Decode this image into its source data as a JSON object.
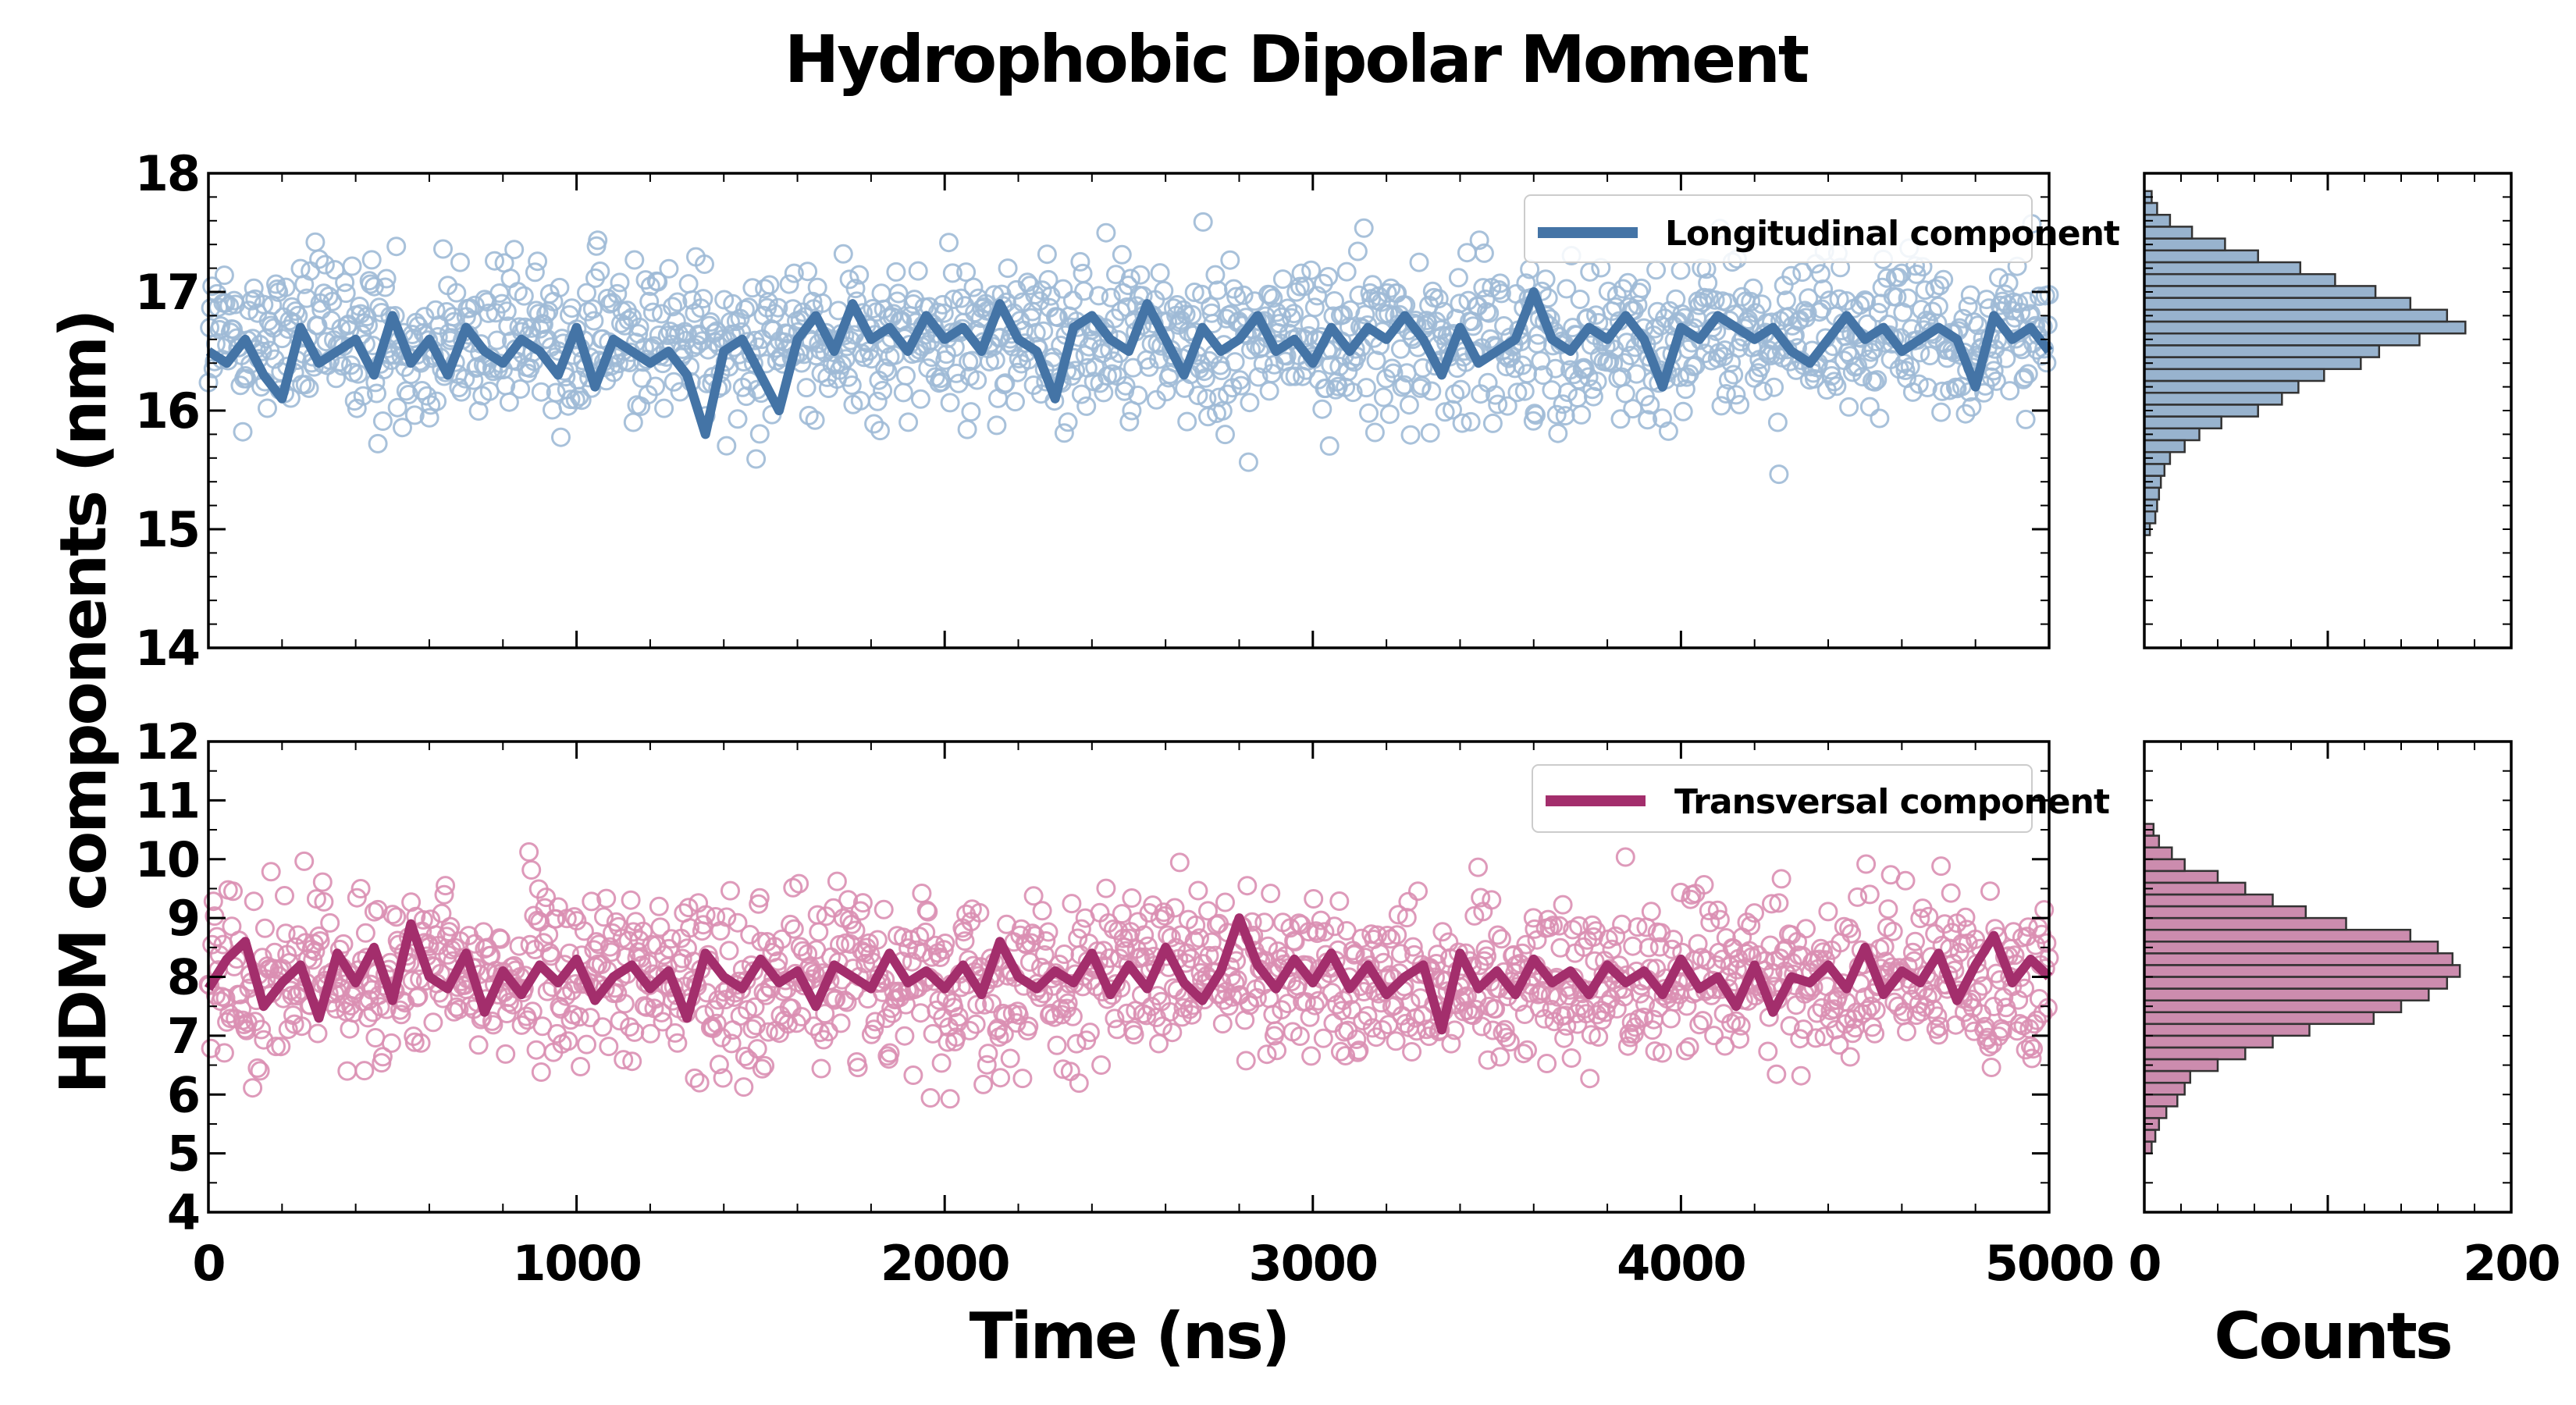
{
  "chart_data": {
    "title": "Hydrophobic Dipolar Moment",
    "ylabel": "HDM components (nm)",
    "xlabel_time": "Time (ns)",
    "xlabel_counts": "Counts",
    "time_axis": {
      "range": [
        0,
        5000
      ],
      "ticks": [
        "0",
        "1000",
        "2000",
        "3000",
        "4000",
        "5000"
      ]
    },
    "counts_axis": {
      "range": [
        0,
        200
      ],
      "ticks": [
        "0",
        "200"
      ]
    },
    "panels": [
      {
        "type": "scatter",
        "series_name": "Longitudinal component",
        "color": "#4474a6",
        "scatter_color": "#9fbad6",
        "ylim": [
          14,
          18
        ],
        "yticks": [
          "14",
          "15",
          "16",
          "17",
          "18"
        ],
        "line_x": [
          0,
          50,
          100,
          150,
          200,
          250,
          300,
          350,
          400,
          450,
          500,
          550,
          600,
          650,
          700,
          750,
          800,
          850,
          900,
          950,
          1000,
          1050,
          1100,
          1150,
          1200,
          1250,
          1300,
          1350,
          1400,
          1450,
          1500,
          1550,
          1600,
          1650,
          1700,
          1750,
          1800,
          1850,
          1900,
          1950,
          2000,
          2050,
          2100,
          2150,
          2200,
          2250,
          2300,
          2350,
          2400,
          2450,
          2500,
          2550,
          2600,
          2650,
          2700,
          2750,
          2800,
          2850,
          2900,
          2950,
          3000,
          3050,
          3100,
          3150,
          3200,
          3250,
          3300,
          3350,
          3400,
          3450,
          3500,
          3550,
          3600,
          3650,
          3700,
          3750,
          3800,
          3850,
          3900,
          3950,
          4000,
          4050,
          4100,
          4150,
          4200,
          4250,
          4300,
          4350,
          4400,
          4450,
          4500,
          4550,
          4600,
          4650,
          4700,
          4750,
          4800,
          4850,
          4900,
          4950,
          5000
        ],
        "line_y": [
          16.5,
          16.4,
          16.6,
          16.3,
          16.1,
          16.7,
          16.4,
          16.5,
          16.6,
          16.3,
          16.8,
          16.4,
          16.6,
          16.3,
          16.7,
          16.5,
          16.4,
          16.6,
          16.5,
          16.3,
          16.7,
          16.2,
          16.6,
          16.5,
          16.4,
          16.5,
          16.3,
          15.8,
          16.5,
          16.6,
          16.3,
          16.0,
          16.6,
          16.8,
          16.5,
          16.9,
          16.6,
          16.7,
          16.5,
          16.8,
          16.6,
          16.7,
          16.5,
          16.9,
          16.6,
          16.5,
          16.1,
          16.7,
          16.8,
          16.6,
          16.5,
          16.9,
          16.6,
          16.3,
          16.7,
          16.5,
          16.6,
          16.8,
          16.5,
          16.6,
          16.4,
          16.7,
          16.5,
          16.7,
          16.6,
          16.8,
          16.6,
          16.3,
          16.7,
          16.4,
          16.5,
          16.6,
          17.0,
          16.6,
          16.5,
          16.7,
          16.6,
          16.8,
          16.6,
          16.2,
          16.7,
          16.6,
          16.8,
          16.7,
          16.6,
          16.7,
          16.5,
          16.4,
          16.6,
          16.8,
          16.6,
          16.7,
          16.5,
          16.6,
          16.7,
          16.6,
          16.2,
          16.8,
          16.6,
          16.7,
          16.5
        ],
        "center": 16.6,
        "spread": 0.45,
        "hist_bins": [
          15.0,
          15.1,
          15.2,
          15.3,
          15.4,
          15.5,
          15.6,
          15.7,
          15.8,
          15.9,
          16.0,
          16.1,
          16.2,
          16.3,
          16.4,
          16.5,
          16.6,
          16.7,
          16.8,
          16.9,
          17.0,
          17.1,
          17.2,
          17.3,
          17.4,
          17.5,
          17.6,
          17.7,
          17.8
        ],
        "hist_counts": [
          3,
          6,
          7,
          8,
          9,
          11,
          14,
          22,
          30,
          42,
          62,
          75,
          84,
          98,
          118,
          128,
          150,
          175,
          165,
          145,
          126,
          104,
          85,
          62,
          44,
          26,
          14,
          7,
          4
        ]
      },
      {
        "type": "scatter",
        "series_name": "Transversal component",
        "color": "#a32e6c",
        "scatter_color": "#da8fb3",
        "ylim": [
          4,
          12
        ],
        "yticks": [
          "4",
          "5",
          "6",
          "7",
          "8",
          "9",
          "10",
          "11",
          "12"
        ],
        "line_x": [
          0,
          50,
          100,
          150,
          200,
          250,
          300,
          350,
          400,
          450,
          500,
          550,
          600,
          650,
          700,
          750,
          800,
          850,
          900,
          950,
          1000,
          1050,
          1100,
          1150,
          1200,
          1250,
          1300,
          1350,
          1400,
          1450,
          1500,
          1550,
          1600,
          1650,
          1700,
          1750,
          1800,
          1850,
          1900,
          1950,
          2000,
          2050,
          2100,
          2150,
          2200,
          2250,
          2300,
          2350,
          2400,
          2450,
          2500,
          2550,
          2600,
          2650,
          2700,
          2750,
          2800,
          2850,
          2900,
          2950,
          3000,
          3050,
          3100,
          3150,
          3200,
          3250,
          3300,
          3350,
          3400,
          3450,
          3500,
          3550,
          3600,
          3650,
          3700,
          3750,
          3800,
          3850,
          3900,
          3950,
          4000,
          4050,
          4100,
          4150,
          4200,
          4250,
          4300,
          4350,
          4400,
          4450,
          4500,
          4550,
          4600,
          4650,
          4700,
          4750,
          4800,
          4850,
          4900,
          4950,
          5000
        ],
        "line_y": [
          7.8,
          8.3,
          8.6,
          7.5,
          7.9,
          8.2,
          7.3,
          8.4,
          7.9,
          8.5,
          7.6,
          8.9,
          8.0,
          7.8,
          8.4,
          7.4,
          8.1,
          7.7,
          8.2,
          7.9,
          8.3,
          7.6,
          8.0,
          8.2,
          7.8,
          8.1,
          7.3,
          8.4,
          8.0,
          7.8,
          8.3,
          7.9,
          8.1,
          7.5,
          8.2,
          8.0,
          7.8,
          8.4,
          7.9,
          8.1,
          7.8,
          8.2,
          7.7,
          8.6,
          8.0,
          7.8,
          8.1,
          7.9,
          8.4,
          7.7,
          8.2,
          7.8,
          8.5,
          7.9,
          7.6,
          8.1,
          9.0,
          8.2,
          7.8,
          8.3,
          7.9,
          8.4,
          7.8,
          8.2,
          7.7,
          8.0,
          8.2,
          7.1,
          8.4,
          7.8,
          8.1,
          7.7,
          8.3,
          7.9,
          8.1,
          7.7,
          8.2,
          7.9,
          8.1,
          7.7,
          8.3,
          7.8,
          8.0,
          7.5,
          8.2,
          7.4,
          8.0,
          7.9,
          8.2,
          7.8,
          8.5,
          7.7,
          8.1,
          7.9,
          8.4,
          7.6,
          8.2,
          8.7,
          7.9,
          8.3,
          8.0
        ],
        "center": 8.0,
        "spread": 0.95,
        "hist_bins": [
          5.1,
          5.3,
          5.5,
          5.7,
          5.9,
          6.1,
          6.3,
          6.5,
          6.7,
          6.9,
          7.1,
          7.3,
          7.5,
          7.7,
          7.9,
          8.1,
          8.3,
          8.5,
          8.7,
          8.9,
          9.1,
          9.3,
          9.5,
          9.7,
          9.9,
          10.1,
          10.3,
          10.5
        ],
        "hist_counts": [
          4,
          6,
          8,
          12,
          18,
          22,
          25,
          40,
          55,
          70,
          90,
          125,
          140,
          155,
          165,
          172,
          168,
          160,
          145,
          110,
          88,
          70,
          55,
          40,
          22,
          15,
          8,
          5
        ]
      }
    ]
  }
}
